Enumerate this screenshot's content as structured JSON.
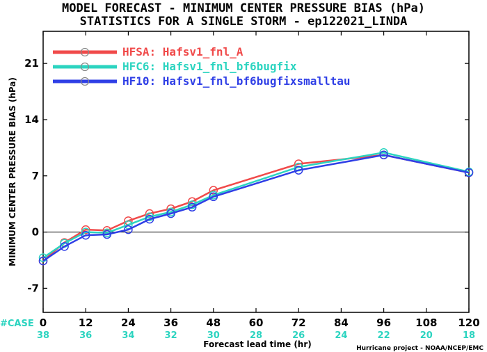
{
  "chart_data": {
    "type": "line",
    "title": "MODEL FORECAST - MINIMUM CENTER PRESSURE BIAS (hPa)",
    "subtitle": "STATISTICS FOR A SINGLE STORM - ep122021_LINDA",
    "xlabel": "Forecast lead time (hr)",
    "ylabel": "MINIMUM CENTER PRESSURE BIAS (hPa)",
    "xlim": [
      0,
      120
    ],
    "ylim": [
      -10,
      25
    ],
    "xticks": [
      0,
      12,
      24,
      36,
      48,
      60,
      72,
      84,
      96,
      108,
      120
    ],
    "yticks": [
      -7,
      0,
      7,
      14,
      21
    ],
    "zero_line": true,
    "legend_position": "top-left",
    "case_label": "#CASE",
    "case_counts": [
      38,
      36,
      34,
      32,
      30,
      28,
      26,
      24,
      22,
      20,
      18
    ],
    "series": [
      {
        "name": "HFSA: Hafsv1_fnl_A",
        "color": "#f04a4a",
        "x": [
          0,
          6,
          12,
          18,
          24,
          30,
          36,
          42,
          48,
          72,
          96,
          120
        ],
        "y": [
          -3.6,
          -1.3,
          0.3,
          0.2,
          1.4,
          2.3,
          2.9,
          3.8,
          5.2,
          8.5,
          9.6,
          7.4
        ]
      },
      {
        "name": "HFC6: Hafsv1_fnl_bf6bugfix",
        "color": "#2cd4c0",
        "x": [
          0,
          6,
          12,
          18,
          24,
          30,
          36,
          42,
          48,
          72,
          96,
          120
        ],
        "y": [
          -3.2,
          -1.4,
          0.0,
          -0.1,
          0.9,
          1.9,
          2.5,
          3.4,
          4.6,
          8.1,
          9.9,
          7.5
        ]
      },
      {
        "name": "HF10: Hafsv1_fnl_bf6bugfixsmalltau",
        "color": "#2f3fe6",
        "x": [
          0,
          6,
          12,
          18,
          24,
          30,
          36,
          42,
          48,
          72,
          96,
          120
        ],
        "y": [
          -3.6,
          -1.8,
          -0.4,
          -0.3,
          0.3,
          1.6,
          2.3,
          3.1,
          4.4,
          7.7,
          9.6,
          7.4
        ]
      }
    ],
    "credit": "Hurricane project - NOAA/NCEP/EMC"
  }
}
